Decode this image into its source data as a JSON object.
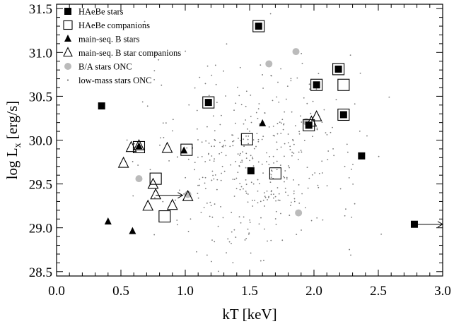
{
  "chart_data": {
    "type": "scatter",
    "xlabel": "kT [keV]",
    "ylabel_main": "log L",
    "ylabel_sub": "x",
    "ylabel_unit": " [erg/s]",
    "xlim": [
      0.0,
      3.0
    ],
    "ylim": [
      28.45,
      31.55
    ],
    "xticks": [
      0.0,
      0.5,
      1.0,
      1.5,
      2.0,
      2.5,
      3.0
    ],
    "xtick_labels": [
      "0.0",
      "0.5",
      "1.0",
      "1.5",
      "2.0",
      "2.5",
      "3.0"
    ],
    "yticks": [
      28.5,
      29.0,
      29.5,
      30.0,
      30.5,
      31.0,
      31.5
    ],
    "ytick_labels": [
      "28.5",
      "29.0",
      "29.5",
      "30.0",
      "30.5",
      "31.0",
      "31.5"
    ],
    "grid": false,
    "legend_position": "top-left",
    "series": [
      {
        "name": "HAeBe stars",
        "marker": "filled-square",
        "points": [
          [
            0.35,
            30.39
          ],
          [
            1.18,
            30.43
          ],
          [
            1.57,
            31.3
          ],
          [
            1.51,
            29.65
          ],
          [
            1.96,
            30.17
          ],
          [
            2.02,
            30.63
          ],
          [
            2.19,
            30.81
          ],
          [
            2.23,
            30.29
          ],
          [
            2.37,
            29.82
          ],
          [
            2.78,
            29.04
          ]
        ]
      },
      {
        "name": "HAeBe companions",
        "marker": "open-square",
        "points": [
          [
            0.64,
            29.92
          ],
          [
            1.01,
            29.89
          ],
          [
            0.77,
            29.56
          ],
          [
            0.84,
            29.13
          ],
          [
            1.18,
            30.43
          ],
          [
            1.48,
            30.01
          ],
          [
            1.57,
            31.3
          ],
          [
            1.7,
            29.62
          ],
          [
            1.96,
            30.17
          ],
          [
            2.02,
            30.63
          ],
          [
            2.19,
            30.81
          ],
          [
            2.23,
            30.63
          ],
          [
            2.23,
            30.29
          ]
        ]
      },
      {
        "name": "main-seq. B stars",
        "marker": "filled-triangle",
        "points": [
          [
            0.4,
            29.07
          ],
          [
            0.59,
            28.96
          ],
          [
            0.64,
            29.93
          ],
          [
            0.99,
            29.88
          ],
          [
            1.6,
            30.19
          ]
        ]
      },
      {
        "name": "main-seq. B star companions",
        "marker": "open-triangle",
        "points": [
          [
            0.52,
            29.73
          ],
          [
            0.58,
            29.91
          ],
          [
            0.64,
            29.93
          ],
          [
            0.71,
            29.24
          ],
          [
            0.75,
            29.49
          ],
          [
            0.77,
            29.37
          ],
          [
            0.86,
            29.9
          ],
          [
            0.9,
            29.25
          ],
          [
            1.02,
            29.35
          ],
          [
            1.98,
            30.2
          ],
          [
            2.02,
            30.26
          ]
        ]
      },
      {
        "name": "B/A stars ONC",
        "marker": "filled-circle",
        "color": "#bbbbbb",
        "points": [
          [
            0.64,
            29.56
          ],
          [
            1.02,
            29.38
          ],
          [
            1.65,
            30.87
          ],
          [
            1.86,
            31.01
          ],
          [
            1.88,
            29.17
          ],
          [
            1.94,
            30.21
          ]
        ]
      },
      {
        "name": "low-mass stars ONC",
        "marker": "dot",
        "color": "#777777",
        "seed": 7,
        "count": 430,
        "distribution_center": [
          1.55,
          29.75
        ],
        "distribution_spread": [
          0.42,
          0.55
        ]
      }
    ],
    "arrows": [
      {
        "from": [
          0.77,
          29.37
        ],
        "to": [
          0.98,
          29.37
        ]
      },
      {
        "from": [
          2.8,
          29.04
        ],
        "to": [
          3.0,
          29.04
        ]
      }
    ]
  }
}
